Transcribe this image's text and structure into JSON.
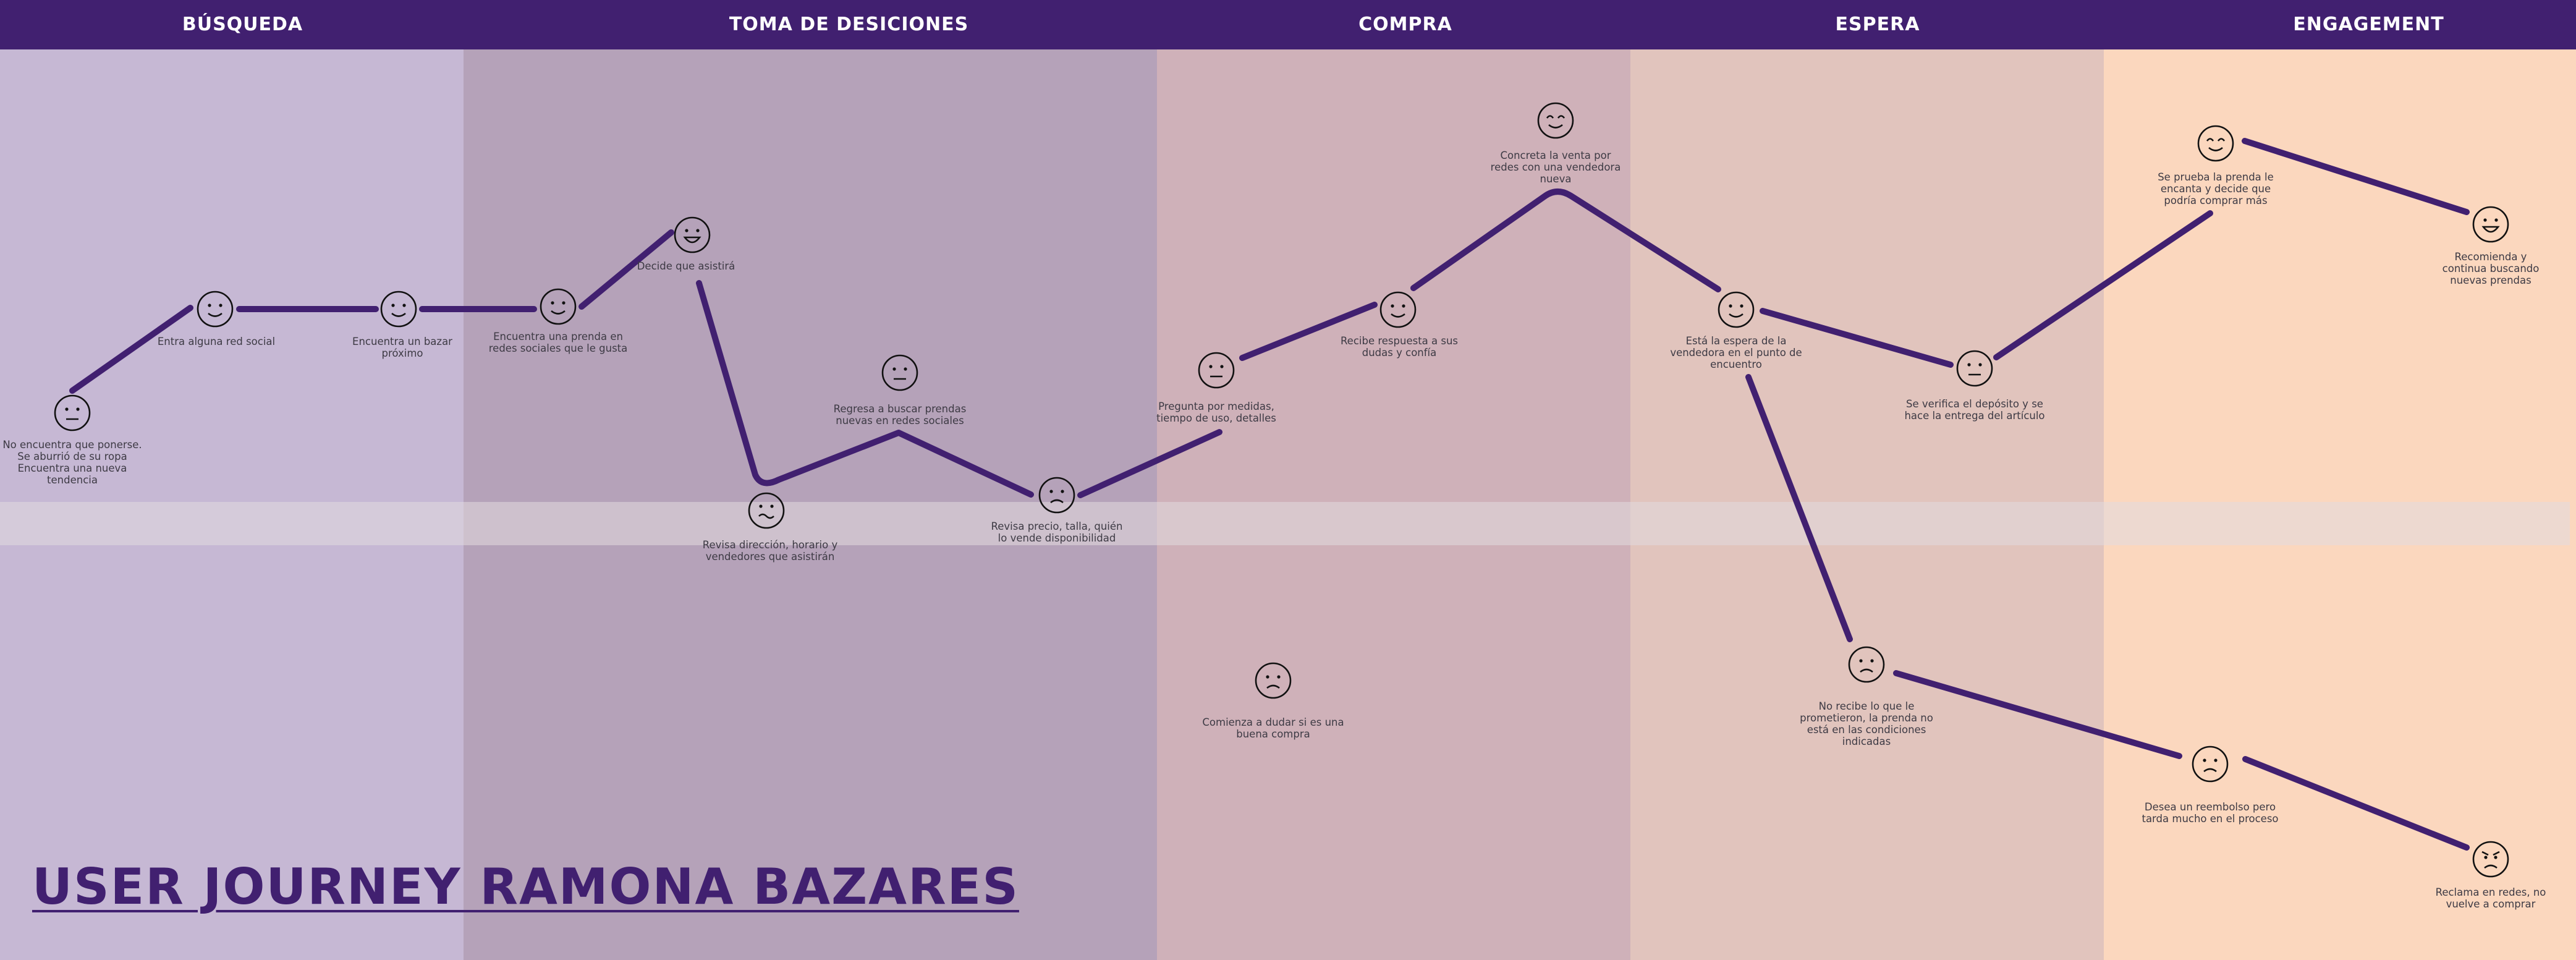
{
  "title": "USER JOURNEY RAMONA BAZARES",
  "colors": {
    "header": "#412070",
    "line": "#412070",
    "stage_busqueda": "#c6b8d4",
    "stage_toma": "#b5a2b9",
    "stage_compra": "#cfb1b9",
    "stage_espera": "#e1c4bd",
    "stage_engagement": "#fbd7be"
  },
  "stages": [
    {
      "id": "busqueda",
      "label": "BÚSQUEDA"
    },
    {
      "id": "toma",
      "label": "TOMA DE DESICIONES"
    },
    {
      "id": "compra",
      "label": "COMPRA"
    },
    {
      "id": "espera",
      "label": "ESPERA"
    },
    {
      "id": "engagement",
      "label": "ENGAGEMENT"
    }
  ],
  "steps": [
    {
      "id": "s1",
      "emotion": "neutral",
      "label": "No encuentra que ponerse.\nSe aburrió de su ropa\nEncuentra una nueva tendencia"
    },
    {
      "id": "s2",
      "emotion": "smile",
      "label": "Entra alguna red social"
    },
    {
      "id": "s3",
      "emotion": "smile",
      "label": "Encuentra un bazar\npróximo"
    },
    {
      "id": "s4",
      "emotion": "smile",
      "label": "Encuentra una prenda en\nredes sociales que le gusta"
    },
    {
      "id": "s5",
      "emotion": "grin",
      "label": "Decide que asistirá"
    },
    {
      "id": "s6",
      "emotion": "wavy",
      "label": "Revisa dirección, horario y\nvendedores que asistirán"
    },
    {
      "id": "s7",
      "emotion": "neutral",
      "label": "Regresa a buscar prendas\nnuevas en redes sociales"
    },
    {
      "id": "s8",
      "emotion": "frown",
      "label": "Revisa precio, talla, quién\nlo vende disponibilidad"
    },
    {
      "id": "s9",
      "emotion": "neutral",
      "label": "Pregunta por medidas,\ntiempo de uso, detalles"
    },
    {
      "id": "s10",
      "emotion": "smile",
      "label": "Recibe respuesta a sus\ndudas y confía"
    },
    {
      "id": "s11",
      "emotion": "happy-eyes",
      "label": "Concreta la venta por\nredes con una vendedora\nnueva"
    },
    {
      "id": "s12",
      "emotion": "frown",
      "label": "Comienza a dudar si es una\nbuena compra"
    },
    {
      "id": "s13",
      "emotion": "smile",
      "label": "Está la espera de la\nvendedora en el punto de\nencuentro"
    },
    {
      "id": "s14",
      "emotion": "neutral",
      "label": "Se verifica el depósito y se\nhace la entrega del artículo"
    },
    {
      "id": "s15",
      "emotion": "frown",
      "label": "No recibe lo que le\nprometieron, la prenda no\nestá en las condiciones\nindicadas"
    },
    {
      "id": "s16",
      "emotion": "happy-eyes",
      "label": "Se prueba la prenda le\nencanta y decide que\npodría comprar más"
    },
    {
      "id": "s17",
      "emotion": "grin",
      "label": "Recomienda y\ncontinua buscando\nnuevas prendas"
    },
    {
      "id": "s18",
      "emotion": "frown",
      "label": "Desea un reembolso pero\ntarda mucho en el proceso"
    },
    {
      "id": "s19",
      "emotion": "angry",
      "label": "Reclama en redes, no\nvuelve a comprar"
    }
  ]
}
